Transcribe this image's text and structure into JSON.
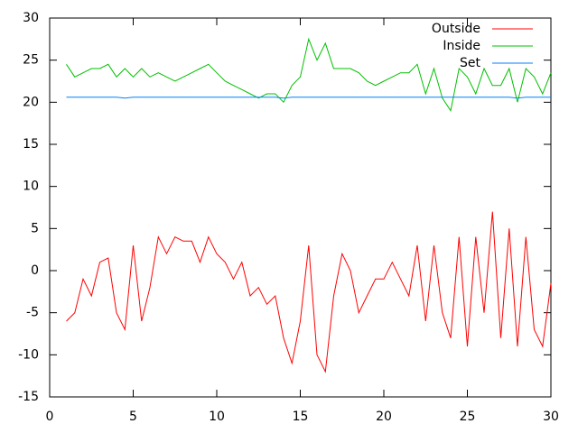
{
  "chart_data": {
    "type": "line",
    "x": [
      1,
      1.5,
      2,
      2.5,
      3,
      3.5,
      4,
      4.5,
      5,
      5.5,
      6,
      6.5,
      7,
      7.5,
      8,
      8.5,
      9,
      9.5,
      10,
      10.5,
      11,
      11.5,
      12,
      12.5,
      13,
      13.5,
      14,
      14.5,
      15,
      15.5,
      16,
      16.5,
      17,
      17.5,
      18,
      18.5,
      19,
      19.5,
      20,
      20.5,
      21,
      21.5,
      22,
      22.5,
      23,
      23.5,
      24,
      24.5,
      25,
      25.5,
      26,
      26.5,
      27,
      27.5,
      28,
      28.5,
      29,
      29.5,
      30
    ],
    "series": [
      {
        "name": "Outside",
        "color": "#ff0000",
        "values": [
          -6,
          -5,
          -1,
          -3,
          1,
          1.5,
          -5,
          -7,
          3,
          -6,
          -2,
          4,
          2,
          4,
          3.5,
          3.5,
          1,
          4,
          2,
          1,
          -1,
          1,
          -3,
          -2,
          -4,
          -3,
          -8,
          -11,
          -6,
          3,
          -10,
          -12,
          -3,
          2,
          0,
          -5,
          -3,
          -1,
          -1,
          1,
          -1,
          -3,
          3,
          -6,
          3,
          -5,
          -8,
          4,
          -9,
          4,
          -5,
          7,
          -8,
          5,
          -9,
          4,
          -7,
          -9,
          -1.5
        ]
      },
      {
        "name": "Inside",
        "color": "#00c000",
        "values": [
          24.5,
          23,
          23.5,
          24,
          24,
          24.5,
          23,
          24,
          23,
          24,
          23,
          23.5,
          23,
          22.5,
          23,
          23.5,
          24,
          24.5,
          23.5,
          22.5,
          22,
          21.5,
          21,
          20.5,
          21,
          21,
          20,
          22,
          23,
          27.5,
          25,
          27,
          24,
          24,
          24,
          23.5,
          22.5,
          22,
          22.5,
          23,
          23.5,
          23.5,
          24.5,
          21,
          24,
          20.5,
          19,
          24,
          23,
          21,
          24,
          22,
          22,
          24,
          20,
          24,
          23,
          21,
          23.5
        ]
      },
      {
        "name": "Set",
        "color": "#0080ff",
        "values": [
          20.6,
          20.6,
          20.6,
          20.6,
          20.6,
          20.6,
          20.6,
          20.5,
          20.6,
          20.6,
          20.6,
          20.6,
          20.6,
          20.6,
          20.6,
          20.6,
          20.6,
          20.6,
          20.6,
          20.6,
          20.6,
          20.6,
          20.6,
          20.6,
          20.6,
          20.6,
          20.5,
          20.6,
          20.6,
          20.6,
          20.6,
          20.6,
          20.6,
          20.6,
          20.6,
          20.6,
          20.6,
          20.6,
          20.6,
          20.6,
          20.6,
          20.6,
          20.6,
          20.6,
          20.6,
          20.6,
          20.6,
          20.6,
          20.6,
          20.6,
          20.6,
          20.6,
          20.6,
          20.6,
          20.5,
          20.6,
          20.6,
          20.6,
          20.6
        ]
      }
    ],
    "xlim": [
      0,
      30
    ],
    "xticks": [
      0,
      5,
      10,
      15,
      20,
      25,
      30
    ],
    "ylim": [
      -15,
      30
    ],
    "yticks": [
      -15,
      -10,
      -5,
      0,
      5,
      10,
      15,
      20,
      25,
      30
    ]
  }
}
